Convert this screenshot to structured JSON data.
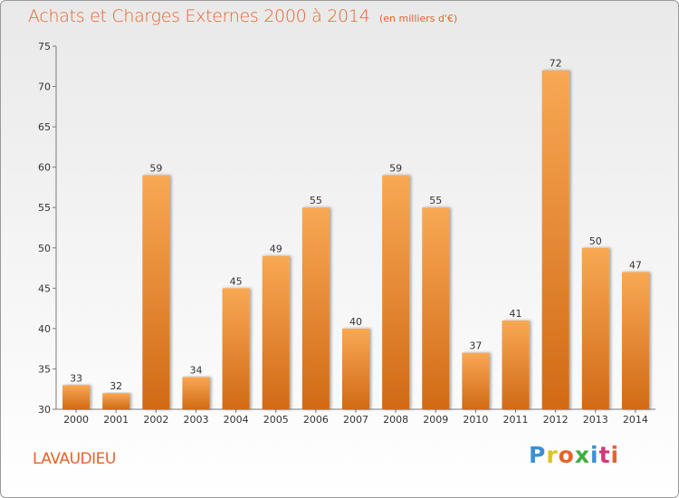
{
  "chart_data": {
    "type": "bar",
    "title": "Achats et Charges Externes 2000 à 2014",
    "subtitle": "(en milliers d'€)",
    "categories": [
      "2000",
      "2001",
      "2002",
      "2003",
      "2004",
      "2005",
      "2006",
      "2007",
      "2008",
      "2009",
      "2010",
      "2011",
      "2012",
      "2013",
      "2014"
    ],
    "values": [
      33,
      32,
      59,
      34,
      45,
      49,
      55,
      40,
      59,
      55,
      37,
      41,
      72,
      50,
      47
    ],
    "ylim": [
      30,
      75
    ],
    "yticks": [
      30,
      35,
      40,
      45,
      50,
      55,
      60,
      65,
      70,
      75
    ],
    "grid": false,
    "bar_color": "#f29c48"
  },
  "footer": {
    "commune": "LAVAUDIEU",
    "logo_parts": [
      "P",
      "r",
      "o",
      "x",
      "i",
      "t",
      "i"
    ]
  },
  "colors": {
    "accent": "#e5632b"
  }
}
